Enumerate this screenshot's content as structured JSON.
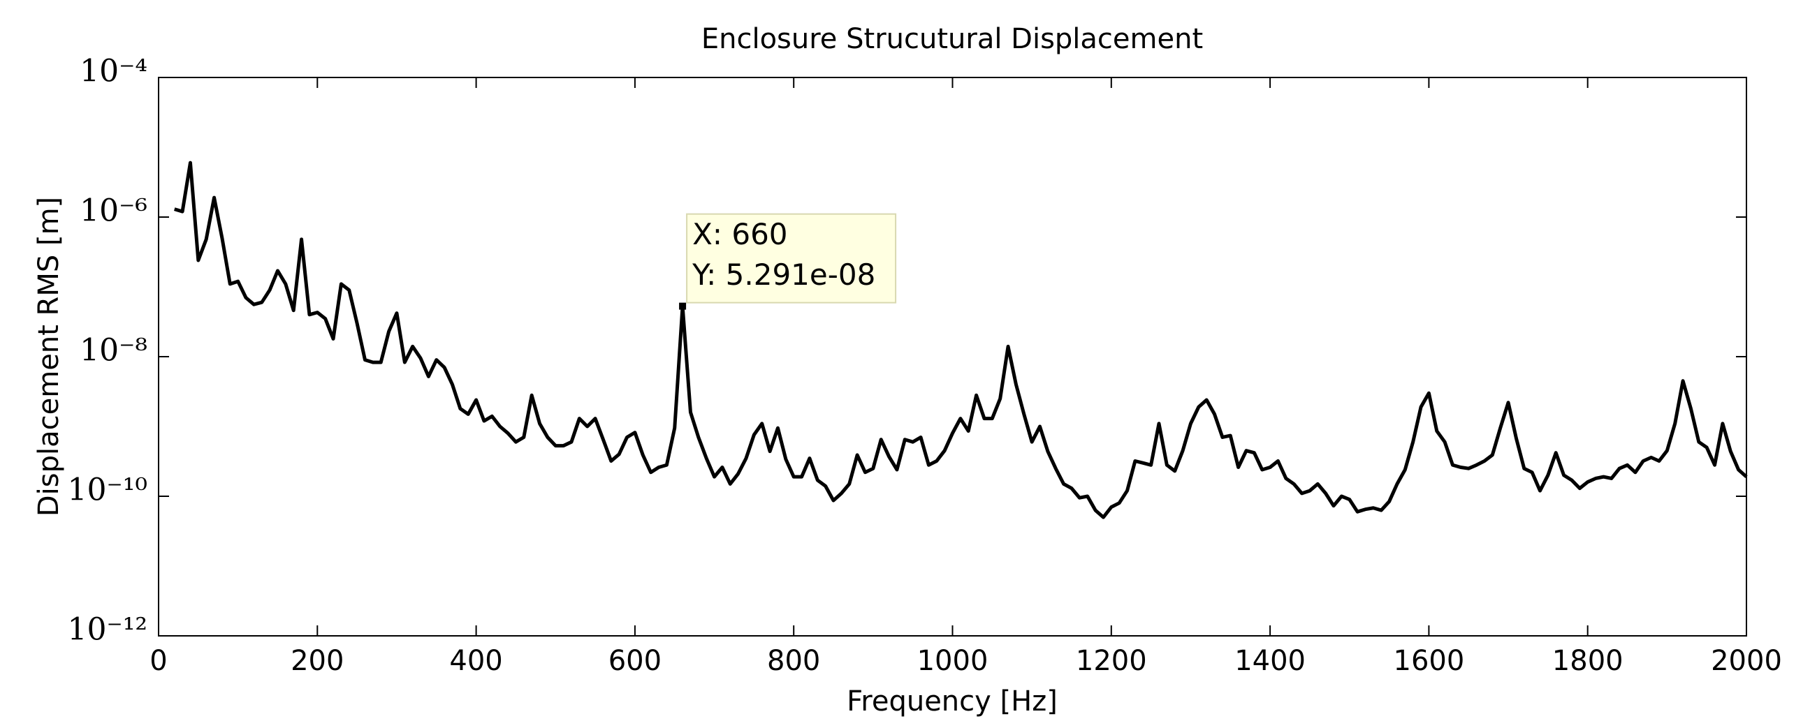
{
  "chart_data": {
    "type": "line",
    "title": "Enclosure Strucutural Displacement",
    "xlabel": "Frequency [Hz]",
    "ylabel": "Displacement RMS [m]",
    "log_y": true,
    "grid": false,
    "color": "#000000",
    "xlim": [
      0,
      2000
    ],
    "xticks": [
      0,
      200,
      400,
      600,
      800,
      1000,
      1200,
      1400,
      1600,
      1800,
      2000
    ],
    "ylim": [
      1e-12,
      0.0001
    ],
    "yticks": [
      {
        "value": 1e-12,
        "label": "10⁻¹²"
      },
      {
        "value": 1e-10,
        "label": "10⁻¹⁰"
      },
      {
        "value": 1e-08,
        "label": "10⁻⁸"
      },
      {
        "value": 1e-06,
        "label": "10⁻⁶"
      },
      {
        "value": 0.0001,
        "label": "10⁻⁴"
      }
    ],
    "x": [
      20,
      30,
      40,
      50,
      60,
      70,
      80,
      90,
      100,
      110,
      120,
      130,
      140,
      150,
      160,
      170,
      180,
      190,
      200,
      210,
      220,
      230,
      240,
      250,
      260,
      270,
      280,
      290,
      300,
      310,
      320,
      330,
      340,
      350,
      360,
      370,
      380,
      390,
      400,
      410,
      420,
      430,
      440,
      450,
      460,
      470,
      480,
      490,
      500,
      510,
      520,
      530,
      540,
      550,
      560,
      570,
      580,
      590,
      600,
      610,
      620,
      630,
      640,
      650,
      660,
      670,
      680,
      690,
      700,
      710,
      720,
      730,
      740,
      750,
      760,
      770,
      780,
      790,
      800,
      810,
      820,
      830,
      840,
      850,
      860,
      870,
      880,
      890,
      900,
      910,
      920,
      930,
      940,
      950,
      960,
      970,
      980,
      990,
      1000,
      1010,
      1020,
      1030,
      1040,
      1050,
      1060,
      1070,
      1080,
      1090,
      1100,
      1110,
      1120,
      1130,
      1140,
      1150,
      1160,
      1170,
      1180,
      1190,
      1200,
      1210,
      1220,
      1230,
      1240,
      1250,
      1260,
      1270,
      1280,
      1290,
      1300,
      1310,
      1320,
      1330,
      1340,
      1350,
      1360,
      1370,
      1380,
      1390,
      1400,
      1410,
      1420,
      1430,
      1440,
      1450,
      1460,
      1470,
      1480,
      1490,
      1500,
      1510,
      1520,
      1530,
      1540,
      1550,
      1560,
      1570,
      1580,
      1590,
      1600,
      1610,
      1620,
      1630,
      1640,
      1650,
      1660,
      1670,
      1680,
      1690,
      1700,
      1710,
      1720,
      1730,
      1740,
      1750,
      1760,
      1770,
      1780,
      1790,
      1800,
      1810,
      1820,
      1830,
      1840,
      1850,
      1860,
      1870,
      1880,
      1890,
      1900,
      1910,
      1920,
      1930,
      1940,
      1950,
      1960,
      1970,
      1980,
      1990,
      2000
    ],
    "values": [
      1.3e-06,
      1.2e-06,
      6e-06,
      2.4e-07,
      4.8e-07,
      1.9e-06,
      5e-07,
      1.1e-07,
      1.2e-07,
      7e-08,
      5.6e-08,
      6e-08,
      9e-08,
      1.7e-07,
      1.1e-07,
      4.6e-08,
      4.8e-07,
      4e-08,
      4.3e-08,
      3.5e-08,
      1.8e-08,
      1.1e-07,
      9e-08,
      3e-08,
      9e-09,
      8.3e-09,
      8.3e-09,
      2.3e-08,
      4.2e-08,
      8.3e-09,
      1.4e-08,
      9.5e-09,
      5.2e-09,
      9e-09,
      7e-09,
      4e-09,
      1.8e-09,
      1.5e-09,
      2.4e-09,
      1.2e-09,
      1.4e-09,
      1e-09,
      8e-10,
      6e-10,
      7e-10,
      2.8e-09,
      1.1e-09,
      7e-10,
      5.3e-10,
      5.3e-10,
      6e-10,
      1.3e-09,
      1e-09,
      1.3e-09,
      6.5e-10,
      3.2e-10,
      4e-10,
      7e-10,
      8.2e-10,
      3.9e-10,
      2.2e-10,
      2.6e-10,
      2.8e-10,
      9.5e-10,
      5.291e-08,
      1.6e-09,
      7e-10,
      3.5e-10,
      1.9e-10,
      2.6e-10,
      1.5e-10,
      2.1e-10,
      3.5e-10,
      7.6e-10,
      1.1e-09,
      4.4e-10,
      9.5e-10,
      3.4e-10,
      1.9e-10,
      1.9e-10,
      3.5e-10,
      1.7e-10,
      1.4e-10,
      8.7e-11,
      1.1e-10,
      1.5e-10,
      3.9e-10,
      2.2e-10,
      2.5e-10,
      6.5e-10,
      3.7e-10,
      2.4e-10,
      6.5e-10,
      6e-10,
      7e-10,
      2.8e-10,
      3.2e-10,
      4.5e-10,
      8e-10,
      1.3e-09,
      8.6e-10,
      2.8e-09,
      1.3e-09,
      1.3e-09,
      2.5e-09,
      1.4e-08,
      4e-09,
      1.5e-09,
      6e-10,
      1e-09,
      4.4e-10,
      2.5e-10,
      1.5e-10,
      1.3e-10,
      9.5e-11,
      1e-10,
      6.3e-11,
      5e-11,
      7e-11,
      8e-11,
      1.2e-10,
      3.2e-10,
      3e-10,
      2.8e-10,
      1.1e-09,
      2.8e-10,
      2.3e-10,
      4.5e-10,
      1.1e-09,
      1.9e-09,
      2.4e-09,
      1.5e-09,
      7e-10,
      7.4e-10,
      2.6e-10,
      4.5e-10,
      4.2e-10,
      2.4e-10,
      2.6e-10,
      3.2e-10,
      1.8e-10,
      1.5e-10,
      1.1e-10,
      1.2e-10,
      1.5e-10,
      1.1e-10,
      7.3e-11,
      1e-10,
      9e-11,
      6e-11,
      6.5e-11,
      6.8e-11,
      6.3e-11,
      8.4e-11,
      1.5e-10,
      2.4e-10,
      6e-10,
      1.9e-09,
      3e-09,
      8.6e-10,
      6e-10,
      2.8e-10,
      2.6e-10,
      2.5e-10,
      2.8e-10,
      3.2e-10,
      3.9e-10,
      9.5e-10,
      2.2e-09,
      6.8e-10,
      2.5e-10,
      2.2e-10,
      1.2e-10,
      2e-10,
      4.2e-10,
      2e-10,
      1.7e-10,
      1.3e-10,
      1.6e-10,
      1.8e-10,
      1.9e-10,
      1.8e-10,
      2.5e-10,
      2.8e-10,
      2.2e-10,
      3.2e-10,
      3.6e-10,
      3.2e-10,
      4.5e-10,
      1.1e-09,
      4.5e-09,
      1.8e-09,
      6e-10,
      5e-10,
      2.8e-10,
      1.1e-09,
      4.4e-10,
      2.4e-10,
      1.9e-10
    ],
    "datatip": {
      "x": 660,
      "y": 5.291e-08,
      "x_label": "X: 660",
      "y_label": "Y: 5.291e-08"
    }
  }
}
